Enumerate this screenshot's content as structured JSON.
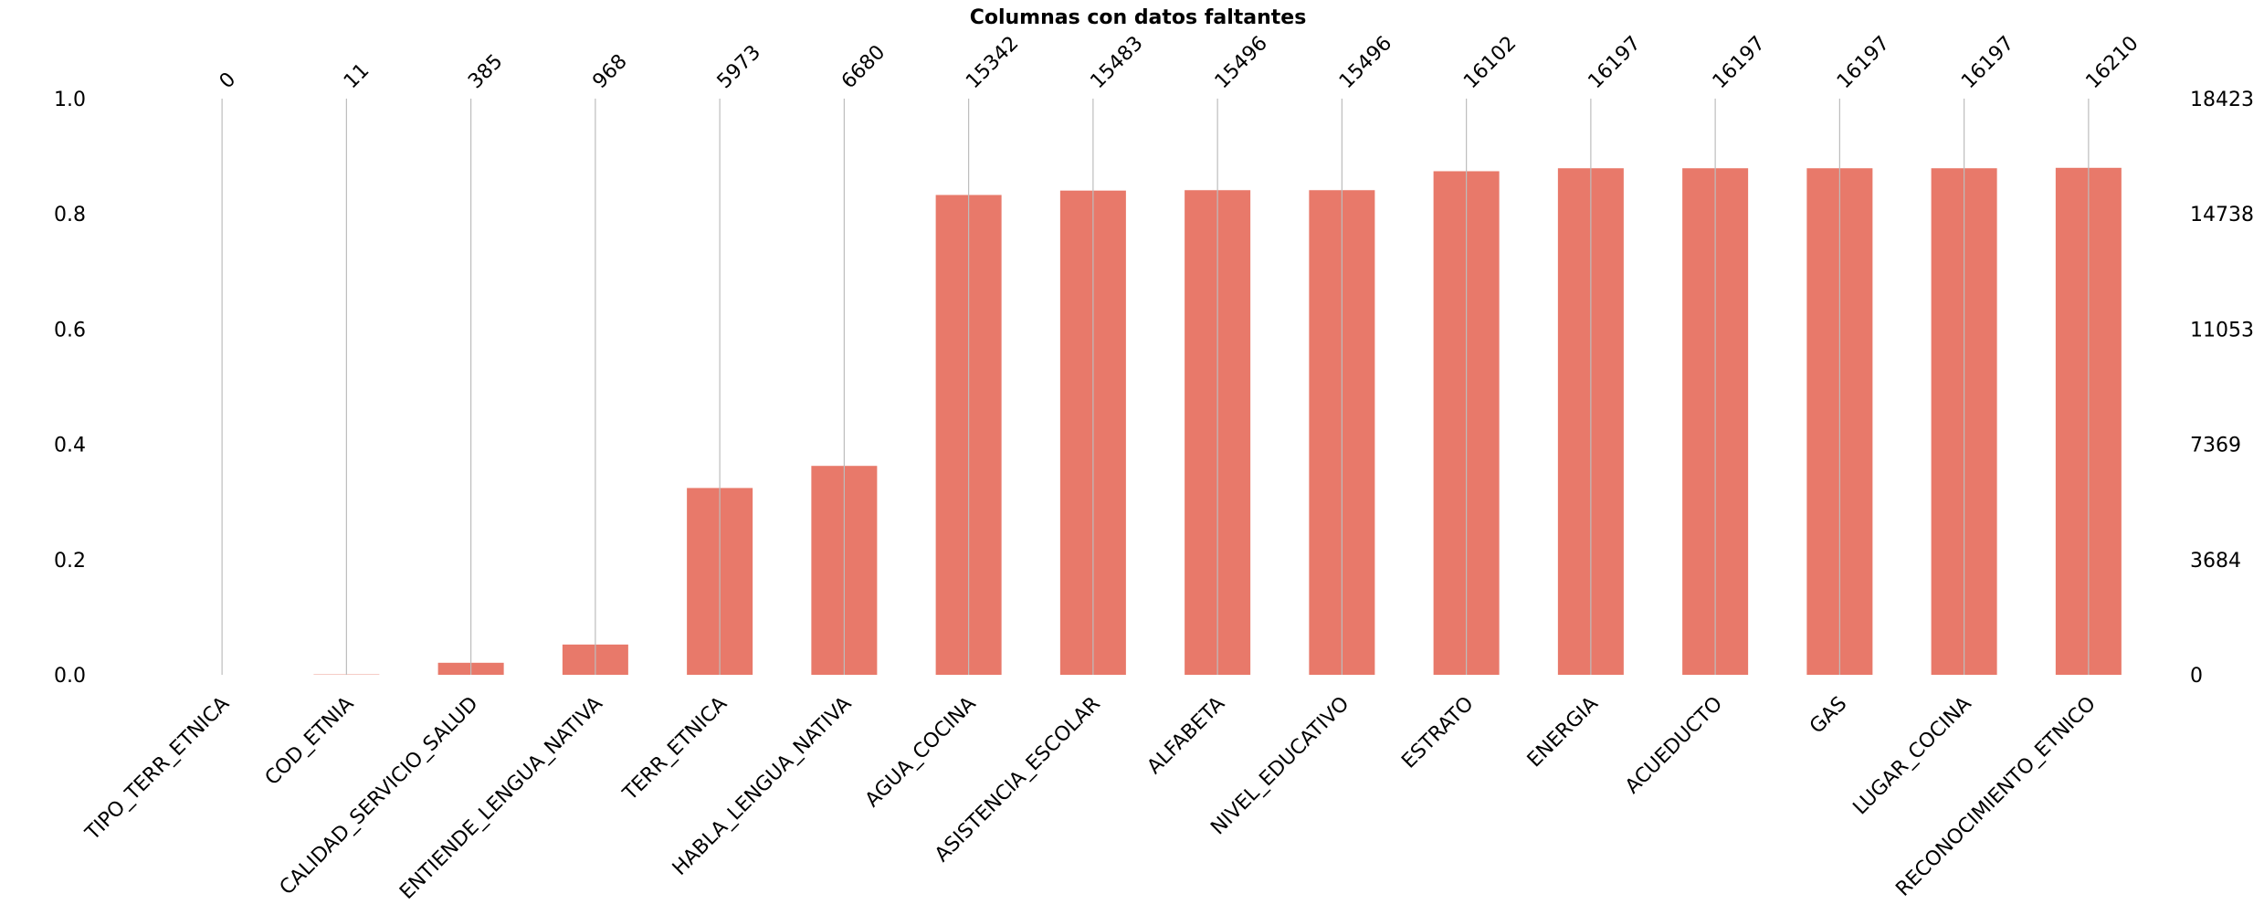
{
  "chart_data": {
    "type": "bar",
    "title": "Columnas con datos faltantes",
    "xlabel": "",
    "ylabel": "",
    "total_rows": 18423,
    "categories": [
      "TIPO_TERR_ETNICA",
      "COD_ETNIA",
      "CALIDAD_SERVICIO_SALUD",
      "ENTIENDE_LENGUA_NATIVA",
      "TERR_ETNICA",
      "HABLA_LENGUA_NATIVA",
      "AGUA_COCINA",
      "ASISTENCIA_ESCOLAR",
      "ALFABETA",
      "NIVEL_EDUCATIVO",
      "ESTRATO",
      "ENERGIA",
      "ACUEDUCTO",
      "GAS",
      "LUGAR_COCINA",
      "RECONOCIMIENTO_ETNICO"
    ],
    "values": [
      0,
      11,
      385,
      968,
      5973,
      6680,
      15342,
      15483,
      15496,
      15496,
      16102,
      16197,
      16197,
      16197,
      16197,
      16210
    ],
    "ylim": [
      0,
      1.0
    ],
    "left_ticks": [
      "0.0",
      "0.2",
      "0.4",
      "0.6",
      "0.8",
      "1.0"
    ],
    "right_ticks": [
      "0",
      "3684",
      "7369",
      "11053",
      "14738",
      "18423"
    ],
    "bar_color": "#e8796a",
    "grid": false
  }
}
